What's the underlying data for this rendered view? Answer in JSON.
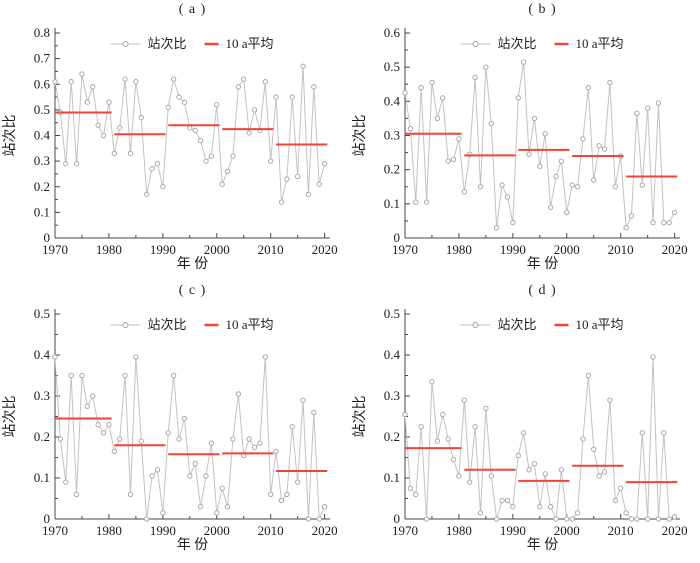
{
  "figure": {
    "background": "#ffffff",
    "axis_color": "#474747",
    "text_color": "#1c1c1c",
    "series_line_color": "#c3c2c2",
    "marker_edge_color": "#a0a0a0",
    "marker_fill_color": "#ffffff",
    "mean_line_color": "#f2433a",
    "xlabel": "年 份",
    "ylabel": "站次比",
    "legend": {
      "series_label": "站次比",
      "mean_label": "10 a平均"
    },
    "x_range": [
      1970,
      2021
    ],
    "x_ticks": [
      1970,
      1980,
      1990,
      2000,
      2010,
      2020
    ],
    "x_minor_ticks": [
      1975,
      1985,
      1995,
      2005,
      2015
    ],
    "decade_spans": [
      [
        1970,
        1980.5
      ],
      [
        1981,
        1990.5
      ],
      [
        1991,
        2000.5
      ],
      [
        2001,
        2010.5
      ],
      [
        2011,
        2020.5
      ]
    ]
  },
  "chart_data": [
    {
      "id": "a",
      "title": "( a )",
      "type": "line",
      "xlabel": "年 份",
      "ylabel": "站次比",
      "x_start": 1970,
      "x_end": 2020,
      "ylim": [
        0,
        0.8
      ],
      "ytick_step": 0.1,
      "values": [
        0.61,
        0.49,
        0.29,
        0.61,
        0.29,
        0.64,
        0.53,
        0.59,
        0.44,
        0.4,
        0.53,
        0.33,
        0.43,
        0.62,
        0.33,
        0.61,
        0.47,
        0.17,
        0.27,
        0.29,
        0.2,
        0.51,
        0.62,
        0.55,
        0.53,
        0.43,
        0.42,
        0.38,
        0.3,
        0.32,
        0.52,
        0.21,
        0.26,
        0.32,
        0.59,
        0.62,
        0.41,
        0.5,
        0.42,
        0.61,
        0.3,
        0.55,
        0.14,
        0.23,
        0.55,
        0.24,
        0.67,
        0.17,
        0.59,
        0.21,
        0.29
      ],
      "decade_means": [
        0.49,
        0.405,
        0.44,
        0.425,
        0.365
      ]
    },
    {
      "id": "b",
      "title": "( b )",
      "type": "line",
      "xlabel": "年 份",
      "ylabel": "站次比",
      "x_start": 1970,
      "x_end": 2020,
      "ylim": [
        0,
        0.6
      ],
      "ytick_step": 0.1,
      "values": [
        0.425,
        0.32,
        0.105,
        0.44,
        0.105,
        0.455,
        0.35,
        0.41,
        0.225,
        0.23,
        0.29,
        0.135,
        0.245,
        0.47,
        0.15,
        0.5,
        0.335,
        0.03,
        0.155,
        0.12,
        0.045,
        0.41,
        0.515,
        0.245,
        0.35,
        0.21,
        0.305,
        0.09,
        0.18,
        0.225,
        0.075,
        0.155,
        0.15,
        0.29,
        0.44,
        0.17,
        0.27,
        0.26,
        0.455,
        0.15,
        0.24,
        0.03,
        0.065,
        0.365,
        0.155,
        0.38,
        0.045,
        0.395,
        0.045,
        0.045,
        0.075
      ],
      "decade_means": [
        0.305,
        0.242,
        0.258,
        0.24,
        0.18
      ]
    },
    {
      "id": "c",
      "title": "( c )",
      "type": "line",
      "xlabel": "年 份",
      "ylabel": "站次比",
      "x_start": 1970,
      "x_end": 2020,
      "ylim": [
        0,
        0.5
      ],
      "ytick_step": 0.1,
      "values": [
        0.395,
        0.195,
        0.09,
        0.35,
        0.06,
        0.35,
        0.275,
        0.3,
        0.23,
        0.21,
        0.23,
        0.165,
        0.195,
        0.35,
        0.06,
        0.395,
        0.19,
        0.0,
        0.105,
        0.12,
        0.015,
        0.21,
        0.35,
        0.195,
        0.245,
        0.105,
        0.135,
        0.03,
        0.105,
        0.185,
        0.015,
        0.075,
        0.03,
        0.195,
        0.305,
        0.155,
        0.195,
        0.175,
        0.185,
        0.395,
        0.06,
        0.165,
        0.045,
        0.06,
        0.225,
        0.09,
        0.29,
        0.0,
        0.26,
        0.0,
        0.03
      ],
      "decade_means": [
        0.245,
        0.18,
        0.158,
        0.16,
        0.117
      ]
    },
    {
      "id": "d",
      "title": "( d )",
      "type": "line",
      "xlabel": "年 份",
      "ylabel": "站次比",
      "x_start": 1970,
      "x_end": 2020,
      "ylim": [
        0,
        0.5
      ],
      "ytick_step": 0.1,
      "values": [
        0.255,
        0.075,
        0.06,
        0.225,
        0.0,
        0.335,
        0.19,
        0.255,
        0.195,
        0.145,
        0.105,
        0.29,
        0.09,
        0.225,
        0.015,
        0.27,
        0.105,
        0.0,
        0.045,
        0.045,
        0.03,
        0.155,
        0.21,
        0.12,
        0.135,
        0.03,
        0.11,
        0.03,
        0.0,
        0.12,
        0.0,
        0.0,
        0.015,
        0.195,
        0.35,
        0.17,
        0.105,
        0.115,
        0.29,
        0.045,
        0.075,
        0.015,
        0.0,
        0.0,
        0.21,
        0.0,
        0.395,
        0.0,
        0.21,
        0.0,
        0.005
      ],
      "decade_means": [
        0.173,
        0.12,
        0.093,
        0.13,
        0.09
      ]
    }
  ]
}
